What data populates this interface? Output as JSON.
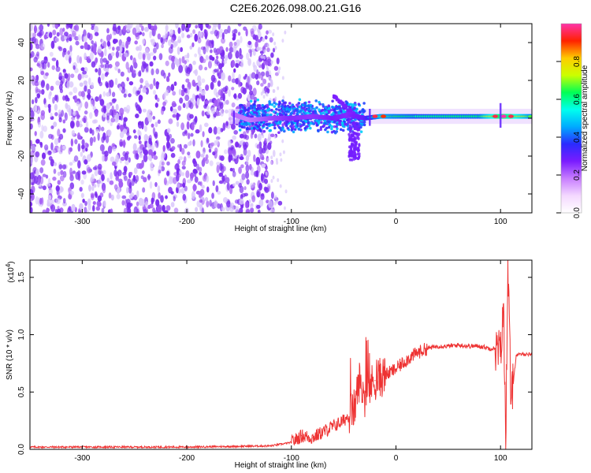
{
  "title": "C2E6.2026.098.00.21.G16",
  "colors": {
    "snr_line": "#ee3333",
    "spectro_scatter": "#7b2cf0",
    "spectro_faint": "#d9c6fb",
    "frame": "#000000"
  },
  "chart_data": [
    {
      "type": "heatmap",
      "xlabel": "Height of straight line (km)",
      "ylabel": "Frequency (Hz)",
      "xlim": [
        -350,
        130
      ],
      "ylim": [
        -50,
        50
      ],
      "x_ticks": [
        -300,
        -200,
        -100,
        0,
        100
      ],
      "y_ticks": [
        -40,
        -20,
        0,
        20,
        40
      ],
      "colorbar": {
        "label": "Normalized spectral amplitude",
        "range": [
          0,
          1
        ],
        "ticks": [
          0.0,
          0.2,
          0.4,
          0.6,
          0.8
        ],
        "colormap": [
          "#ffffff",
          "#f4d8ff",
          "#c77dff",
          "#7a1cff",
          "#2b2bff",
          "#00aaff",
          "#00ffee",
          "#00ff55",
          "#ccff00",
          "#ffcc00",
          "#ff2200",
          "#ff33aa"
        ]
      },
      "ridge": [
        {
          "x": -155,
          "f": 2,
          "amp": 0.3
        },
        {
          "x": -140,
          "f": -1,
          "amp": 0.28
        },
        {
          "x": -120,
          "f": 0,
          "amp": 0.35
        },
        {
          "x": -100,
          "f": 0,
          "amp": 0.4
        },
        {
          "x": -80,
          "f": 1,
          "amp": 0.38
        },
        {
          "x": -60,
          "f": 0,
          "amp": 0.42
        },
        {
          "x": -45,
          "f": 2,
          "amp": 0.4
        },
        {
          "x": -30,
          "f": 0,
          "amp": 0.45
        },
        {
          "x": -15,
          "f": 1,
          "amp": 0.7
        },
        {
          "x": 0,
          "f": 1,
          "amp": 0.65
        },
        {
          "x": 20,
          "f": 1,
          "amp": 0.6
        },
        {
          "x": 50,
          "f": 1,
          "amp": 0.62
        },
        {
          "x": 80,
          "f": 1,
          "amp": 0.62
        },
        {
          "x": 100,
          "f": 1,
          "amp": 0.95
        },
        {
          "x": 110,
          "f": 1,
          "amp": 0.9
        },
        {
          "x": 130,
          "f": 1,
          "amp": 0.65
        }
      ]
    },
    {
      "type": "line",
      "xlabel": "Height of straight line (km)",
      "ylabel": "SNR (10 * v/v)",
      "scale_label": "(x10",
      "scale_exp": "4",
      "scale_suffix": ")",
      "xlim": [
        -350,
        130
      ],
      "ylim": [
        0,
        1.65
      ],
      "x_ticks": [
        -300,
        -200,
        -100,
        0,
        100
      ],
      "y_ticks": [
        0.0,
        0.5,
        1.0,
        1.5
      ],
      "series": [
        {
          "x": [
            -350,
            -300,
            -200,
            -120,
            -100,
            -90,
            -80,
            -70,
            -60,
            -50,
            -40,
            -35,
            -30,
            -25,
            -20,
            -10,
            0,
            10,
            20,
            30,
            40,
            50,
            60,
            70,
            80,
            90,
            95,
            100,
            103,
            105,
            107,
            110,
            115,
            120,
            130
          ],
          "y": [
            0.02,
            0.02,
            0.02,
            0.03,
            0.06,
            0.12,
            0.1,
            0.15,
            0.2,
            0.25,
            0.35,
            0.6,
            0.45,
            0.55,
            0.6,
            0.65,
            0.7,
            0.78,
            0.84,
            0.88,
            0.9,
            0.9,
            0.91,
            0.9,
            0.9,
            0.88,
            0.88,
            0.85,
            1.2,
            0.1,
            1.65,
            0.4,
            0.82,
            0.83,
            0.83
          ]
        }
      ]
    }
  ]
}
